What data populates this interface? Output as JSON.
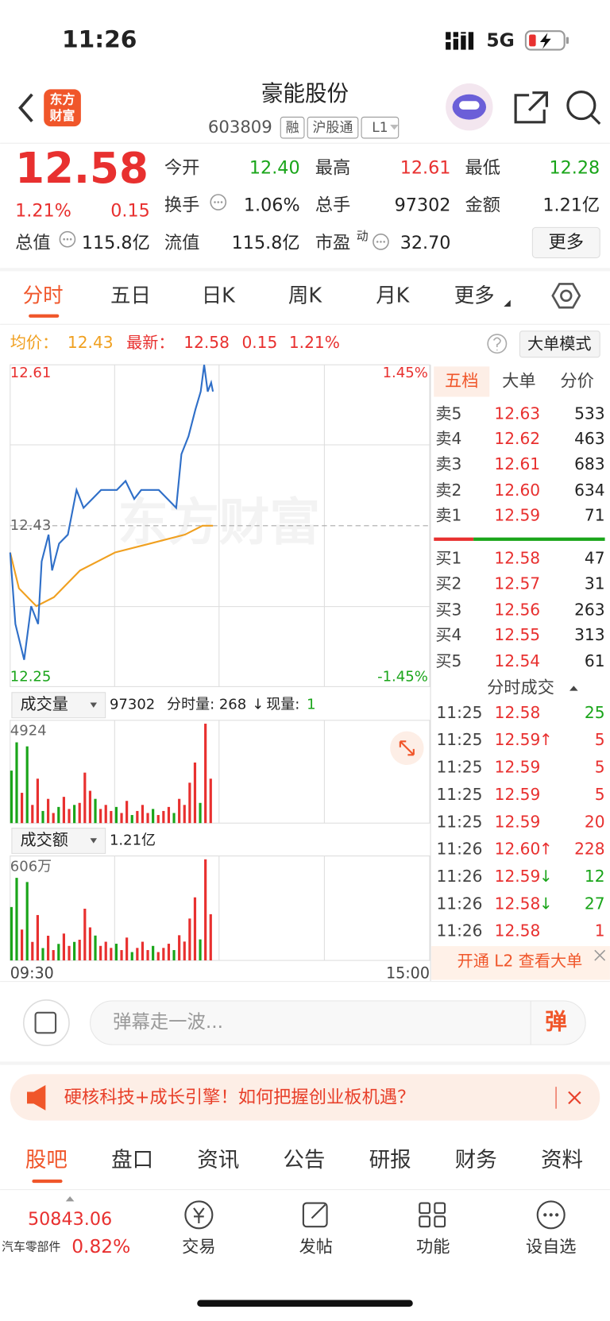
{
  "status": {
    "time": "11:26",
    "network": "5G"
  },
  "header": {
    "logo": [
      "东方",
      "财富"
    ],
    "title": "豪能股份",
    "code": "603809",
    "tags": [
      "融",
      "沪股通",
      "L1"
    ]
  },
  "quote": {
    "price": "12.58",
    "pct": "1.21%",
    "change": "0.15",
    "more": "更多",
    "fields": [
      {
        "label": "今开",
        "value": "12.40",
        "color": "#1aa51a"
      },
      {
        "label": "最高",
        "value": "12.61",
        "color": "#e8302f"
      },
      {
        "label": "最低",
        "value": "12.28",
        "color": "#1aa51a"
      },
      {
        "label": "换手",
        "value": "1.06%",
        "color": "#222"
      },
      {
        "label": "总手",
        "value": "97302",
        "color": "#222"
      },
      {
        "label": "金额",
        "value": "1.21亿",
        "color": "#222"
      },
      {
        "label": "总值",
        "value": "115.8亿",
        "color": "#222"
      },
      {
        "label": "流值",
        "value": "115.8亿",
        "color": "#222"
      },
      {
        "label": "市盈",
        "sup": "动",
        "value": "32.70",
        "color": "#222"
      }
    ]
  },
  "tabs": [
    "分时",
    "五日",
    "日K",
    "周K",
    "月K",
    "更多"
  ],
  "info": {
    "avg_label": "均价：",
    "avg": "12.43",
    "latest_label": "最新：",
    "latest": "12.58",
    "change": "0.15",
    "pct": "1.21%",
    "mode": "大单模式"
  },
  "intraday": {
    "xlim": [
      0,
      240
    ],
    "ylim": [
      12.25,
      12.61
    ],
    "mid": 12.43,
    "pct_labels": [
      "1.45%",
      "-1.45%"
    ],
    "watermark": "东方财富",
    "x_labels": [
      "09:30",
      "15:00"
    ],
    "price": {
      "color": "#2f6fc8",
      "x": [
        0,
        3,
        8,
        12,
        16,
        18,
        22,
        24,
        28,
        33,
        38,
        42,
        47,
        52,
        61,
        66,
        71,
        75,
        80,
        85,
        90,
        95,
        98,
        102,
        106,
        109,
        111,
        113,
        115,
        116
      ],
      "values": [
        12.4,
        12.32,
        12.28,
        12.34,
        12.32,
        12.39,
        12.42,
        12.38,
        12.41,
        12.42,
        12.47,
        12.45,
        12.46,
        12.47,
        12.47,
        12.48,
        12.46,
        12.47,
        12.47,
        12.47,
        12.46,
        12.45,
        12.51,
        12.53,
        12.56,
        12.58,
        12.61,
        12.58,
        12.59,
        12.58
      ]
    },
    "avg": {
      "color": "#f0a020",
      "x": [
        0,
        5,
        15,
        25,
        40,
        60,
        80,
        100,
        110,
        116
      ],
      "values": [
        12.4,
        12.36,
        12.34,
        12.35,
        12.38,
        12.4,
        12.41,
        12.42,
        12.43,
        12.43
      ]
    }
  },
  "volume": {
    "label": "成交量",
    "total": "97302",
    "detail": [
      "分时量:",
      "268",
      "↓",
      "现量:",
      "1"
    ],
    "ylim": [
      0,
      4924
    ],
    "yticks": [
      4924
    ],
    "x": [
      0,
      3,
      6,
      9,
      12,
      15,
      18,
      21,
      24,
      27,
      30,
      33,
      36,
      39,
      42,
      45,
      48,
      51,
      54,
      57,
      60,
      63,
      66,
      69,
      72,
      75,
      78,
      81,
      84,
      87,
      90,
      93,
      96,
      99,
      102,
      105,
      108,
      111,
      114
    ],
    "values": [
      2600,
      4000,
      1500,
      3800,
      900,
      2200,
      600,
      1200,
      500,
      800,
      1300,
      700,
      900,
      1000,
      2500,
      1600,
      1200,
      700,
      900,
      600,
      800,
      500,
      1100,
      400,
      600,
      900,
      500,
      700,
      400,
      600,
      800,
      500,
      1200,
      900,
      2000,
      3000,
      1000,
      4924,
      2200
    ],
    "colors": [
      "#1aa51a",
      "#1aa51a",
      "#e8302f",
      "#1aa51a",
      "#e8302f",
      "#e8302f",
      "#1aa51a",
      "#e8302f",
      "#e8302f",
      "#1aa51a",
      "#e8302f",
      "#e8302f",
      "#1aa51a",
      "#e8302f",
      "#e8302f",
      "#e8302f",
      "#1aa51a",
      "#e8302f",
      "#e8302f",
      "#e8302f",
      "#1aa51a",
      "#e8302f",
      "#e8302f",
      "#1aa51a",
      "#e8302f",
      "#e8302f",
      "#e8302f",
      "#1aa51a",
      "#e8302f",
      "#e8302f",
      "#e8302f",
      "#1aa51a",
      "#e8302f",
      "#e8302f",
      "#e8302f",
      "#e8302f",
      "#1aa51a",
      "#e8302f",
      "#e8302f"
    ]
  },
  "amount": {
    "label": "成交额",
    "total": "1.21亿",
    "ylim": [
      0,
      606
    ],
    "yticks": [
      {
        "value": 606,
        "label": "606万"
      }
    ],
    "x": [
      0,
      3,
      6,
      9,
      12,
      15,
      18,
      21,
      24,
      27,
      30,
      33,
      36,
      39,
      42,
      45,
      48,
      51,
      54,
      57,
      60,
      63,
      66,
      69,
      72,
      75,
      78,
      81,
      84,
      87,
      90,
      93,
      96,
      99,
      102,
      105,
      108,
      111,
      114
    ],
    "values": [
      320,
      495,
      185,
      470,
      111,
      272,
      74,
      148,
      62,
      99,
      161,
      87,
      111,
      124,
      310,
      198,
      149,
      87,
      112,
      75,
      100,
      62,
      137,
      50,
      75,
      112,
      62,
      87,
      50,
      75,
      100,
      62,
      151,
      113,
      251,
      378,
      126,
      606,
      277
    ]
  },
  "order_book": {
    "tabs": [
      "五档",
      "大单",
      "分价"
    ],
    "asks": [
      [
        "卖5",
        "12.63",
        "533"
      ],
      [
        "卖4",
        "12.62",
        "463"
      ],
      [
        "卖3",
        "12.61",
        "683"
      ],
      [
        "卖2",
        "12.60",
        "634"
      ],
      [
        "卖1",
        "12.59",
        "71"
      ]
    ],
    "bids": [
      [
        "买1",
        "12.58",
        "47"
      ],
      [
        "买2",
        "12.57",
        "31"
      ],
      [
        "买3",
        "12.56",
        "263"
      ],
      [
        "买4",
        "12.55",
        "313"
      ],
      [
        "买5",
        "12.54",
        "61"
      ]
    ]
  },
  "trades": {
    "title": "分时成交",
    "rows": [
      {
        "time": "11:25",
        "price": "12.58",
        "volume": "25",
        "color": "#1aa51a"
      },
      {
        "time": "11:25",
        "price": "12.59",
        "arrow": "↑",
        "arrow_color": "#e8302f",
        "volume": "5",
        "color": "#e8302f"
      },
      {
        "time": "11:25",
        "price": "12.59",
        "volume": "5",
        "color": "#e8302f"
      },
      {
        "time": "11:25",
        "price": "12.59",
        "volume": "5",
        "color": "#e8302f"
      },
      {
        "time": "11:25",
        "price": "12.59",
        "volume": "20",
        "color": "#e8302f"
      },
      {
        "time": "11:26",
        "price": "12.60",
        "arrow": "↑",
        "arrow_color": "#e8302f",
        "volume": "228",
        "color": "#e8302f"
      },
      {
        "time": "11:26",
        "price": "12.59",
        "arrow": "↓",
        "arrow_color": "#1aa51a",
        "volume": "12",
        "color": "#1aa51a"
      },
      {
        "time": "11:26",
        "price": "12.58",
        "arrow": "↓",
        "arrow_color": "#1aa51a",
        "volume": "27",
        "color": "#1aa51a"
      },
      {
        "time": "11:26",
        "price": "12.58",
        "volume": "1",
        "color": "#e8302f"
      }
    ],
    "banner": "开通 L2 查看大单"
  },
  "danmaku": {
    "placeholder": "弹幕走一波...",
    "button": "弹"
  },
  "ad": {
    "text": "硬核科技+成长引擎！如何把握创业板机遇？"
  },
  "section_tabs": [
    "股吧",
    "盘口",
    "资讯",
    "公告",
    "研报",
    "财务",
    "资料"
  ],
  "nav": {
    "index": "50843.06",
    "sector": "汽车零部件",
    "pct": "0.82%",
    "items": [
      "交易",
      "发帖",
      "功能",
      "设自选"
    ]
  }
}
